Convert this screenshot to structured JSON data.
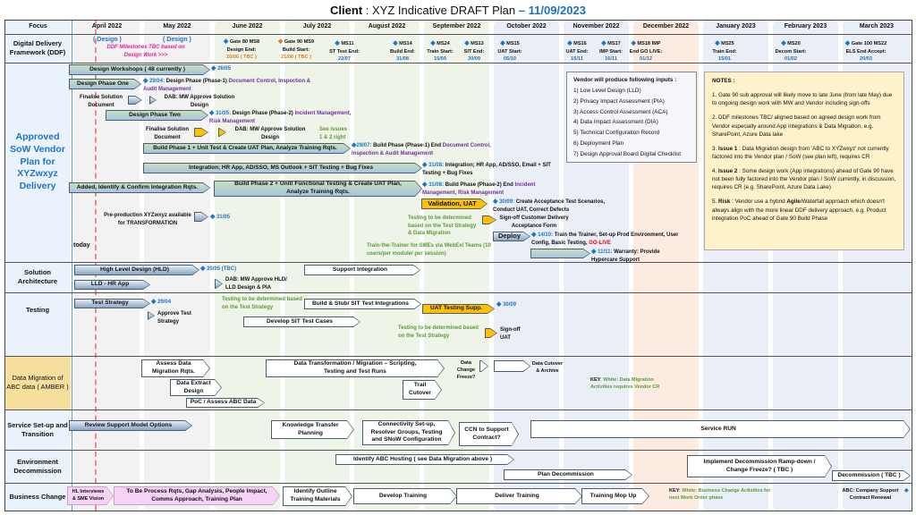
{
  "title": {
    "prefix": "Client",
    "main": " : XYZ Indicative DRAFT Plan ",
    "dash": "– ",
    "date": "11/09/2023"
  },
  "header": {
    "focus": "Focus",
    "months": [
      "April 2022",
      "May 2022",
      "June 2022",
      "July 2022",
      "August 2022",
      "September 2022",
      "October 2022",
      "November 2022",
      "December 2022",
      "January 2023",
      "February 2023",
      "March 2023"
    ]
  },
  "rows": {
    "ddf": "Digital Delivery Framework (DDF)",
    "sow": "Approved SoW Vendor Plan for XYZwxyz Delivery",
    "sa": "Solution Architecture",
    "testing": "Testing",
    "dm": "Data Migration of ABC data ( AMBER )",
    "service": "Service Set-up and Transition",
    "env": "Environment Decommission",
    "bc": "Business Change"
  },
  "ddf": {
    "design_apr": "( Design )",
    "design_may": "( Design )",
    "note": "DDF Milestones TBC based on Design Work >>>",
    "milestones": [
      {
        "name": "Gate 80 MS8",
        "label": "Design End:",
        "date": "20/06 ( TBC )"
      },
      {
        "name": "Gate 90 MS9",
        "label": "Build Start:",
        "date": "21/06 ( TBC )"
      },
      {
        "name": "MS11",
        "label": "ST Test End:",
        "date": "22/07"
      },
      {
        "name": "MS14",
        "label": "Build End:",
        "date": "31/08"
      },
      {
        "name": "MS24",
        "label": "Train Start:",
        "date": "15/09"
      },
      {
        "name": "MS13",
        "label": "SIT End:",
        "date": "30/09"
      },
      {
        "name": "MS15",
        "label": "UAT Start:",
        "date": "05/10"
      },
      {
        "name": "MS16",
        "label": "UAT End:",
        "date": "15/11"
      },
      {
        "name": "MS17",
        "label": "IMP Start:",
        "date": "16/11"
      },
      {
        "name": "MS18 IMP",
        "label": "End GO LIVE:",
        "date": "01/12"
      },
      {
        "name": "MS25",
        "label": "Train End:",
        "date": "15/01"
      },
      {
        "name": "MS20",
        "label": "Decom Start:",
        "date": "01/02"
      },
      {
        "name": "Gate 100 MS22",
        "label": "ELS End Accept:",
        "date": "20/03"
      }
    ]
  },
  "sow": {
    "design_workshops": "Design Workshops ( 48 currently )",
    "dw_date": "26/05",
    "phase_one": "Design Phase One",
    "p1_date": "29/04:",
    "p1_text": "Design Phase (Phase-1)",
    "p1_purple": "Document Control, Inspection & Audit Management",
    "finalise1": "Finalise Solution Document",
    "dab1": "DAB: MW Approve Solution Design",
    "phase_two": "Design Phase Two",
    "p2_date": "31/05:",
    "p2_text": "Design Phase (Phase-2)",
    "p2_purple": "Incident Management, Risk Management",
    "finalise2": "Finalise Solution Document",
    "dab2": "DAB: MW Approve Solution Design",
    "see_issues": "See issues 1 & 2 right",
    "build1": "Build Phase 1 + Unit Test & Create UAT Plan, Analyze Training Rqts.",
    "b1_date": "29/07:",
    "b1_text": "Build Phase (Phase-1) End",
    "b1_purple": "Document Control, Inspection & Audit Management",
    "integration": "Integration; HR App, AD/SSO, MS Outlook + SIT Testing + Bug Fixes",
    "int_date": "31/08:",
    "int_text": "Integration; HR App, AD/SSO, Email + SIT Testing + Bug Fixes",
    "added": "Added, Identify & Confirm Integration Rqts.",
    "build2": "Build Phase 2 + Unit/ Functional Testing & Create UAT Plan, Analyze Training Rqts.",
    "b2_date": "31/08:",
    "b2_text": "Build Phase (Phase-2) End",
    "b2_purple": "Incident Management, Risk Management",
    "validation": "Validation, UAT",
    "val_date": "30/09:",
    "val_text": "Create Acceptance Test Scenarios, Conduct UAT, Correct Defects",
    "testing_tbd": "Testing to be determined based on the Test Strategy & Data Migration",
    "signoff": "Sign-off Customer Delivery Acceptance Form",
    "preprod": "Pre-production XYZwxyz available for TRANSFORMATION",
    "preprod_date": "31/05",
    "deploy": "Deploy",
    "dep_date": "14/10:",
    "dep_text": "Train the Trainer, Set-up Prod Environment, User Config, Basic Testing,",
    "golive": "GO-LIVE",
    "ttt": "Train-the-Trainer for SMEs via WebEx/ Teams (10 users/per module/ per session)",
    "war_date": "11/11:",
    "war_text": "Warranty: Provide Hypercare Support",
    "today": "today"
  },
  "vendor": {
    "title": "Vendor will produce following inputs :",
    "items": [
      "1) Low Level Design (LLD)",
      "2) Privacy Impact Assessment (PIA)",
      "3) Access Control Assessment (ACA)",
      "4) Data Impact Assessment (DIA)",
      "5) Technical Configuration Record",
      "6) Deployment Plan",
      "7) Design Approval Board Digital Checklist"
    ]
  },
  "notes": {
    "title": "NOTES :",
    "n1": "1. Gate 90 sub approval will likely move to late June (from late May) due to ongoing design work with MW and Vendor including sign-offs",
    "n2": "2. DDF milestones TBC/ aligned based on agreed design work from Vendor especially around App integrations & Data Migration, e.g. SharePoint, Azure Data lake",
    "n3a": "3. ",
    "n3b": "Issue 1",
    "n3c": " : Data Migration design from 'ABC to XYZwxyz' not currently factored into the Vendor plan / SoW (see plan left), requires CR",
    "n4a": "4. ",
    "n4b": "Issue 2",
    "n4c": " : Some design work (App integrations) ahead of Gate 90 have not been fully factored into the Vendor plan / SoW currently, in discussion, requires CR (e.g. SharePoint, Azure Data Lake)",
    "n5a": "5. ",
    "n5b": "Risk",
    "n5c": " : Vendor use a hybrid ",
    "n5d": "Agile",
    "n5e": "/Waterfall approach which doesn't always align with the more linear DDF delivery approach, e.g. Product integration PoC ahead of Gate 90 Build Phase"
  },
  "sa": {
    "hld": "High Level Design (HLD)",
    "hld_date": "20/05 (TBC)",
    "lld": "LLD - HR App",
    "dab": "DAB: MW Approve HLD/ LLD Design & PIA",
    "support": "Support Integration"
  },
  "testing": {
    "strategy": "Test Strategy",
    "ts_date": "29/04",
    "approve": "Approve Test Strategy",
    "tbd1": "Testing to be determined based on the Test Strategy",
    "build_stub": "Build & Stub/ SIT Test Integrations",
    "develop_sit": "Develop SIT Test Cases",
    "uat": "UAT Testing Supp.",
    "uat_date": "30/09",
    "tbd2": "Testing to be determined based on the Test Strategy",
    "signoff": "Sign-off UAT"
  },
  "dm": {
    "assess": "Assess Data Migration Rqts.",
    "extract": "Data Extract Design",
    "poc": "PoC / Assess ABC Data",
    "transform": "Data Transformation / Migration – Scripting, Testing and Test Runs",
    "trail": "Trail Cutover",
    "freeze": "Data Change Freeze?",
    "cutover": "Data Cutover & Archive",
    "key_a": "KEY",
    "key_b": ": White: Data Migration Activities requires Vendor CR"
  },
  "service": {
    "review": "Review Support Model Options",
    "kt": "Knowledge Transfer Planning",
    "conn": "Connectivity Set-up, Resolver Groups, Testing and SNoW Configuration",
    "ccn": "CCN to Support Contract?",
    "run": "Service RUN"
  },
  "env": {
    "identify": "Identify ABC Hosting ( see Data Migration above )",
    "plan": "Plan Decommission",
    "implement": "Implement Decommission Ramp-down / Change Freeze? ( TBC )",
    "decom": "Decommission ( TBC )"
  },
  "bc": {
    "hl": "HL Interviews & SME Vision",
    "tobe": "To Be Process Rqts, Gap Analysis, People Impact, Comms Approach, Training Plan",
    "outline": "Identify Outline Training Materials",
    "develop": "Develop Training",
    "deliver": "Deliver Training",
    "mopup": "Training Mop Up",
    "key_a": "KEY",
    "key_b": ": White: Business Change Activities for next Work Order phase",
    "abc": "ABC: Company Support Contract Renewal"
  },
  "colors": {
    "accent": "#1f6fc0",
    "milestone": "#1f73c8",
    "yellow": "#ffc000",
    "purple": "#7030a0",
    "green_note": "#5a9a3a",
    "amber": "#f6df9c"
  }
}
